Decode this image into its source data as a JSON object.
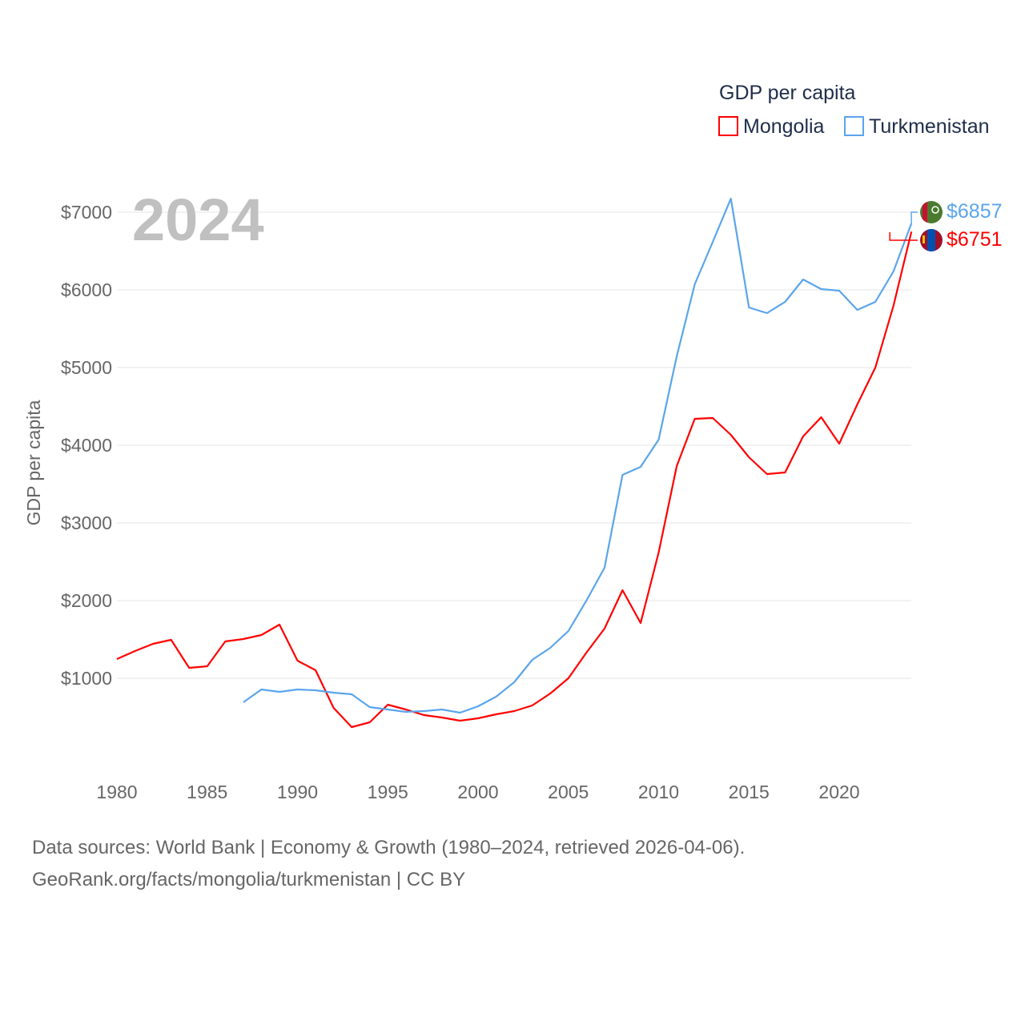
{
  "chart_data": {
    "type": "line",
    "title": "GDP per capita",
    "ylabel": "GDP per capita",
    "year_label": "2024",
    "xlim": [
      1980,
      2024
    ],
    "ylim": [
      0,
      7000
    ],
    "x_ticks": [
      1980,
      1985,
      1990,
      1995,
      2000,
      2005,
      2010,
      2015,
      2020
    ],
    "x_tick_labels": [
      "1980",
      "1985",
      "1990",
      "1995",
      "2000",
      "2005",
      "2010",
      "2015",
      "2020"
    ],
    "y_ticks": [
      1000,
      2000,
      3000,
      4000,
      5000,
      6000,
      7000
    ],
    "y_tick_labels": [
      "$1000",
      "$2000",
      "$3000",
      "$4000",
      "$5000",
      "$6000",
      "$7000"
    ],
    "legend_placement": "top-right",
    "grid": true,
    "series": [
      {
        "name": "Mongolia",
        "color": "#ff0000",
        "start_year": 1980,
        "end_label": "$6751",
        "flag": "mongolia-flag",
        "values": [
          1247,
          1350,
          1443,
          1495,
          1134,
          1155,
          1474,
          1505,
          1557,
          1691,
          1227,
          1103,
          619,
          371,
          433,
          660,
          598,
          526,
          495,
          454,
          485,
          536,
          577,
          649,
          804,
          1000,
          1330,
          1639,
          2134,
          1711,
          2619,
          3732,
          4340,
          4351,
          4134,
          3845,
          3629,
          3649,
          4113,
          4361,
          4021,
          4526,
          5000,
          5794,
          6751
        ]
      },
      {
        "name": "Turkmenistan",
        "color": "#5aa5ec",
        "start_year": 1987,
        "end_label": "$6857",
        "flag": "turkmenistan-flag",
        "values": [
          691,
          856,
          825,
          856,
          845,
          814,
          794,
          629,
          598,
          567,
          577,
          598,
          557,
          639,
          763,
          948,
          1237,
          1392,
          1608,
          2000,
          2423,
          3619,
          3722,
          4072,
          5144,
          6072,
          6619,
          7175,
          5773,
          5701,
          5845,
          6134,
          6010,
          5990,
          5742,
          5845,
          6237,
          6857
        ]
      }
    ]
  },
  "footer": {
    "line1": "Data sources: World Bank | Economy & Growth (1980–2024, retrieved 2026-04-06).",
    "line2": "GeoRank.org/facts/mongolia/turkmenistan | CC BY"
  }
}
